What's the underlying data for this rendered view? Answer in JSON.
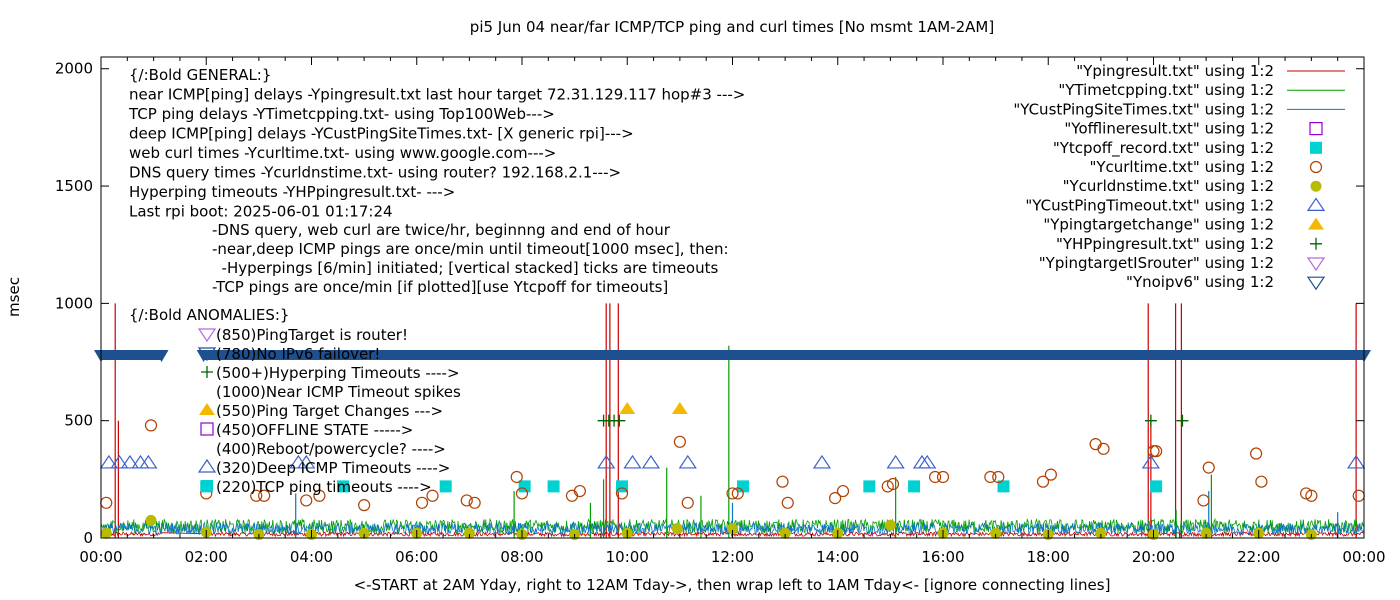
{
  "chart_data": {
    "type": "scatter",
    "title": "pi5 Jun 04  near/far ICMP/TCP ping and curl times [No msmt 1AM-2AM]",
    "ylabel": "msec",
    "xlabel": "<-START at 2AM Yday, right to 12AM Tday->, then wrap left to 1AM Tday<- [ignore connecting lines]",
    "xlim": [
      "00:00",
      "24:00"
    ],
    "ylim": [
      0,
      2050
    ],
    "x_tick_labels": [
      "00:00",
      "02:00",
      "04:00",
      "06:00",
      "08:00",
      "10:00",
      "12:00",
      "14:00",
      "16:00",
      "18:00",
      "20:00",
      "22:00",
      "00:00"
    ],
    "y_tick_labels": [
      "0",
      "500",
      "1000",
      "1500",
      "2000"
    ],
    "y_ticks": [
      0,
      500,
      1000,
      1500,
      2000
    ],
    "grid": false,
    "legend_position": "top-right",
    "legend": [
      {
        "label": "\"Ypingresult.txt\" using 1:2",
        "marker": "line",
        "color": "#cc0000"
      },
      {
        "label": "\"YTimetcpping.txt\" using 1:2",
        "marker": "line",
        "color": "#00a000"
      },
      {
        "label": "\"YCustPingSiteTimes.txt\" using 1:2",
        "marker": "line",
        "color": "#0a74c8"
      },
      {
        "label": "\"Yofflineresult.txt\" using 1:2",
        "marker": "open-square",
        "color": "#9400d3"
      },
      {
        "label": "\"Ytcpoff_record.txt\" using 1:2",
        "marker": "filled-square",
        "color": "#00d2d2"
      },
      {
        "label": "\"Ycurltime.txt\" using 1:2",
        "marker": "open-circle",
        "color": "#b04000"
      },
      {
        "label": "\"Ycurldnstime.txt\" using 1:2",
        "marker": "filled-circle",
        "color": "#b8bc00"
      },
      {
        "label": "\"YCustPingTimeout.txt\" using 1:2",
        "marker": "open-triangle-up",
        "color": "#3a5fcd"
      },
      {
        "label": "\"Ypingtargetchange\" using 1:2",
        "marker": "filled-triangle-up",
        "color": "#f5b800"
      },
      {
        "label": "\"YHPpingresult.txt\" using 1:2",
        "marker": "plus",
        "color": "#006400"
      },
      {
        "label": "\"YpingtargetISrouter\" using 1:2",
        "marker": "open-triangle-down",
        "color": "#b36be0"
      },
      {
        "label": "\"Ynoipv6\" using 1:2",
        "marker": "open-triangle-down",
        "color": "#1e4f8f"
      }
    ],
    "annotations": {
      "general": [
        "{/:Bold GENERAL:}",
        "near ICMP[ping] delays -Ypingresult.txt last hour target 72.31.129.117 hop#3 --->",
        "TCP ping delays -YTimetcpping.txt- using Top100Web--->",
        "deep ICMP[ping] delays -YCustPingSiteTimes.txt- [X generic rpi]--->",
        "web curl times -Ycurltime.txt- using www.google.com--->",
        "DNS query times -Ycurldnstime.txt- using router? 192.168.2.1--->",
        "Hyperping timeouts -YHPpingresult.txt- --->",
        "Last rpi boot: 2025-06-01 01:17:24"
      ],
      "notes": [
        "-DNS query, web curl are twice/hr, beginnng and end of hour",
        "-near,deep ICMP pings are once/min until timeout[1000 msec], then:",
        "  -Hyperpings [6/min] initiated; [vertical stacked] ticks are timeouts",
        "-TCP pings are once/min [if plotted][use Ytcpoff for timeouts]"
      ],
      "anomalies_title": "{/:Bold ANOMALIES:}",
      "anomalies": [
        {
          "text": "(850)PingTarget is router!",
          "marker": "open-triangle-down",
          "color": "#b36be0"
        },
        {
          "text": "(780)No IPv6 failover!",
          "marker": "open-triangle-down",
          "color": "#1e4f8f"
        },
        {
          "text": "(500+)Hyperping Timeouts ---->",
          "marker": "plus",
          "color": "#006400"
        },
        {
          "text": "(1000)Near ICMP Timeout spikes",
          "marker": "none",
          "color": "#000000"
        },
        {
          "text": "(550)Ping Target Changes --->",
          "marker": "filled-triangle-up",
          "color": "#f5b800"
        },
        {
          "text": "(450)OFFLINE STATE ----->",
          "marker": "open-square",
          "color": "#9400d3"
        },
        {
          "text": "(400)Reboot/powercycle? ---->",
          "marker": "none",
          "color": "#000000"
        },
        {
          "text": "(320)Deep ICMP Timeouts ---->",
          "marker": "open-triangle-up",
          "color": "#3a5fcd"
        },
        {
          "text": "(220)TCP ping timeouts ---->",
          "marker": "filled-square",
          "color": "#00d2d2"
        }
      ]
    },
    "series": [
      {
        "name": "\"Ypingresult.txt\" using 1:2",
        "style": "line",
        "color": "#cc0000",
        "baseline": [
          8,
          25
        ],
        "spikes": [
          {
            "x": 0.27,
            "y": 1000
          },
          {
            "x": 0.33,
            "y": 500
          },
          {
            "x": 9.6,
            "y": 1000
          },
          {
            "x": 9.67,
            "y": 1000
          },
          {
            "x": 9.83,
            "y": 1000
          },
          {
            "x": 19.9,
            "y": 1000
          },
          {
            "x": 19.95,
            "y": 500
          },
          {
            "x": 20.42,
            "y": 1000
          },
          {
            "x": 20.53,
            "y": 1000
          },
          {
            "x": 23.85,
            "y": 1000
          }
        ]
      },
      {
        "name": "\"YTimetcpping.txt\" using 1:2",
        "style": "line",
        "color": "#00a000",
        "baseline": [
          20,
          80
        ],
        "spikes": [
          {
            "x": 7.85,
            "y": 200
          },
          {
            "x": 9.3,
            "y": 150
          },
          {
            "x": 9.55,
            "y": 250
          },
          {
            "x": 10.75,
            "y": 300
          },
          {
            "x": 11.4,
            "y": 180
          },
          {
            "x": 11.93,
            "y": 820
          },
          {
            "x": 15.1,
            "y": 260
          },
          {
            "x": 20.43,
            "y": 120
          },
          {
            "x": 21.1,
            "y": 270
          }
        ]
      },
      {
        "name": "\"YCustPingSiteTimes.txt\" using 1:2",
        "style": "line",
        "color": "#0a74c8",
        "baseline": [
          15,
          65
        ],
        "spikes": [
          {
            "x": 3.7,
            "y": 190
          },
          {
            "x": 12.0,
            "y": 150
          },
          {
            "x": 21.05,
            "y": 200
          },
          {
            "x": 23.5,
            "y": 110
          }
        ]
      },
      {
        "name": "\"Ytcpoff_record.txt\" using 1:2",
        "style": "filled-square",
        "color": "#00d2d2",
        "points": [
          {
            "x": 2.0,
            "y": 220
          },
          {
            "x": 4.6,
            "y": 220
          },
          {
            "x": 6.55,
            "y": 220
          },
          {
            "x": 8.05,
            "y": 220
          },
          {
            "x": 8.6,
            "y": 220
          },
          {
            "x": 9.9,
            "y": 220
          },
          {
            "x": 12.2,
            "y": 220
          },
          {
            "x": 14.6,
            "y": 220
          },
          {
            "x": 15.45,
            "y": 220
          },
          {
            "x": 17.15,
            "y": 220
          },
          {
            "x": 20.05,
            "y": 220
          }
        ]
      },
      {
        "name": "\"Ycurltime.txt\" using 1:2",
        "style": "open-circle",
        "color": "#b04000",
        "points": [
          {
            "x": 0.1,
            "y": 150
          },
          {
            "x": 0.95,
            "y": 480
          },
          {
            "x": 2.0,
            "y": 190
          },
          {
            "x": 2.95,
            "y": 180
          },
          {
            "x": 3.1,
            "y": 180
          },
          {
            "x": 3.9,
            "y": 160
          },
          {
            "x": 4.15,
            "y": 180
          },
          {
            "x": 5.0,
            "y": 140
          },
          {
            "x": 6.1,
            "y": 150
          },
          {
            "x": 6.3,
            "y": 180
          },
          {
            "x": 6.95,
            "y": 160
          },
          {
            "x": 7.1,
            "y": 150
          },
          {
            "x": 7.9,
            "y": 260
          },
          {
            "x": 8.0,
            "y": 190
          },
          {
            "x": 8.95,
            "y": 180
          },
          {
            "x": 9.1,
            "y": 200
          },
          {
            "x": 9.9,
            "y": 190
          },
          {
            "x": 11.0,
            "y": 410
          },
          {
            "x": 11.15,
            "y": 150
          },
          {
            "x": 12.0,
            "y": 190
          },
          {
            "x": 12.1,
            "y": 190
          },
          {
            "x": 12.95,
            "y": 240
          },
          {
            "x": 13.05,
            "y": 150
          },
          {
            "x": 13.95,
            "y": 170
          },
          {
            "x": 14.1,
            "y": 200
          },
          {
            "x": 14.95,
            "y": 220
          },
          {
            "x": 15.05,
            "y": 230
          },
          {
            "x": 15.85,
            "y": 260
          },
          {
            "x": 16.0,
            "y": 260
          },
          {
            "x": 16.9,
            "y": 260
          },
          {
            "x": 17.05,
            "y": 260
          },
          {
            "x": 17.9,
            "y": 240
          },
          {
            "x": 18.05,
            "y": 270
          },
          {
            "x": 18.9,
            "y": 400
          },
          {
            "x": 19.05,
            "y": 380
          },
          {
            "x": 20.0,
            "y": 370
          },
          {
            "x": 20.05,
            "y": 370
          },
          {
            "x": 20.95,
            "y": 160
          },
          {
            "x": 21.05,
            "y": 300
          },
          {
            "x": 21.95,
            "y": 360
          },
          {
            "x": 22.05,
            "y": 240
          },
          {
            "x": 22.9,
            "y": 190
          },
          {
            "x": 23.0,
            "y": 180
          },
          {
            "x": 23.9,
            "y": 180
          }
        ]
      },
      {
        "name": "\"Ycurldnstime.txt\" using 1:2",
        "style": "filled-circle",
        "color": "#b8bc00",
        "points": [
          {
            "x": 0.1,
            "y": 20
          },
          {
            "x": 0.95,
            "y": 75
          },
          {
            "x": 2.0,
            "y": 25
          },
          {
            "x": 3.0,
            "y": 15
          },
          {
            "x": 4.0,
            "y": 15
          },
          {
            "x": 5.0,
            "y": 20
          },
          {
            "x": 6.0,
            "y": 20
          },
          {
            "x": 7.0,
            "y": 20
          },
          {
            "x": 8.0,
            "y": 15
          },
          {
            "x": 9.0,
            "y": 15
          },
          {
            "x": 10.0,
            "y": 20
          },
          {
            "x": 10.95,
            "y": 40
          },
          {
            "x": 12.0,
            "y": 40
          },
          {
            "x": 13.0,
            "y": 20
          },
          {
            "x": 14.0,
            "y": 20
          },
          {
            "x": 15.0,
            "y": 55
          },
          {
            "x": 16.0,
            "y": 20
          },
          {
            "x": 17.0,
            "y": 20
          },
          {
            "x": 18.0,
            "y": 15
          },
          {
            "x": 19.0,
            "y": 20
          },
          {
            "x": 20.0,
            "y": 15
          },
          {
            "x": 21.0,
            "y": 20
          },
          {
            "x": 22.0,
            "y": 20
          },
          {
            "x": 23.0,
            "y": 15
          }
        ]
      },
      {
        "name": "\"YCustPingTimeout.txt\" using 1:2",
        "style": "open-triangle-up",
        "color": "#3a5fcd",
        "points": [
          {
            "x": 0.15,
            "y": 320
          },
          {
            "x": 0.35,
            "y": 320
          },
          {
            "x": 0.55,
            "y": 320
          },
          {
            "x": 0.75,
            "y": 320
          },
          {
            "x": 0.9,
            "y": 320
          },
          {
            "x": 3.75,
            "y": 320
          },
          {
            "x": 3.9,
            "y": 320
          },
          {
            "x": 9.6,
            "y": 320
          },
          {
            "x": 10.1,
            "y": 320
          },
          {
            "x": 10.45,
            "y": 320
          },
          {
            "x": 11.15,
            "y": 320
          },
          {
            "x": 13.7,
            "y": 320
          },
          {
            "x": 15.1,
            "y": 320
          },
          {
            "x": 15.6,
            "y": 320
          },
          {
            "x": 15.7,
            "y": 320
          },
          {
            "x": 19.95,
            "y": 320
          },
          {
            "x": 23.85,
            "y": 320
          }
        ]
      },
      {
        "name": "\"Ypingtargetchange\" using 1:2",
        "style": "filled-triangle-up",
        "color": "#f5b800",
        "points": [
          {
            "x": 10.0,
            "y": 550
          },
          {
            "x": 11.0,
            "y": 550
          }
        ]
      },
      {
        "name": "\"YHPpingresult.txt\" using 1:2",
        "style": "plus",
        "color": "#006400",
        "points": [
          {
            "x": 9.55,
            "y": 500
          },
          {
            "x": 9.65,
            "y": 500
          },
          {
            "x": 9.75,
            "y": 500
          },
          {
            "x": 9.85,
            "y": 500
          },
          {
            "x": 19.95,
            "y": 500
          },
          {
            "x": 20.55,
            "y": 500
          }
        ]
      },
      {
        "name": "\"Ynoipv6\" using 1:2",
        "style": "open-triangle-down",
        "color": "#1e4f8f",
        "points_dense_ranges": [
          [
            0.0,
            1.15
          ],
          [
            1.95,
            24.0
          ]
        ],
        "y": 780
      }
    ]
  }
}
